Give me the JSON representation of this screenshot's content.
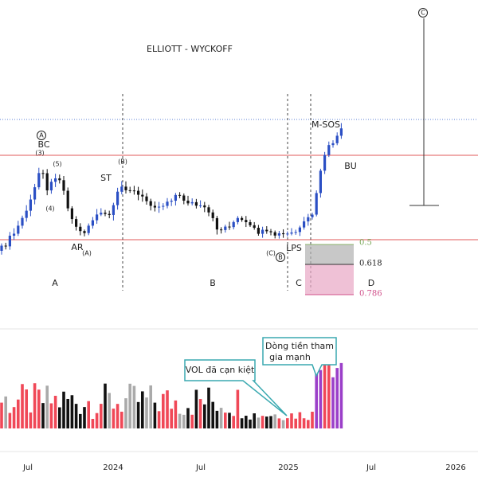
{
  "header": {
    "title": "ELLIOTT - WYCKOFF"
  },
  "annotations": {
    "circle_a": "A",
    "bc": "BC",
    "w3": "(3)",
    "w5": "(5)",
    "w4": "(4)",
    "st": "ST",
    "wb": "(B)",
    "ar": "AR",
    "wa": "(A)",
    "wc": "(C)",
    "circle_b": "B",
    "lps": "LPS",
    "msos": "M-SOS",
    "bu": "BU",
    "circle_c": "C"
  },
  "phases": [
    "A",
    "B",
    "C",
    "D"
  ],
  "fib_levels": [
    "0.5",
    "0.618",
    "0.786"
  ],
  "callouts": {
    "vol": "VOL đã cạn kiệt",
    "flow_1": "Dòng tiền tham",
    "flow_2": "gia mạnh"
  },
  "x_axis": [
    "Jul",
    "2024",
    "Jul",
    "2025",
    "Jul",
    "2026"
  ]
}
